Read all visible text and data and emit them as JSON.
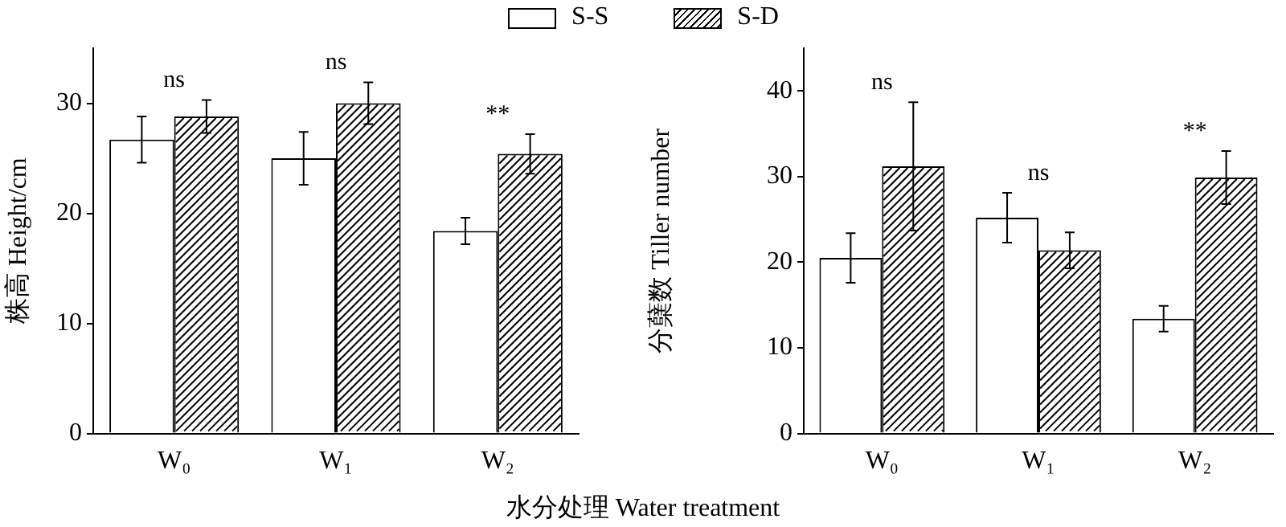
{
  "chart_data": [
    {
      "type": "bar",
      "ylabel": "株高 Height/cm",
      "xlabel": "水分处理 Water treatment",
      "legend": "top",
      "grid": false,
      "categories": [
        "W₀",
        "W₁",
        "W₂"
      ],
      "ylim": [
        0,
        35
      ],
      "yticks": [
        0,
        10,
        20,
        30
      ],
      "series": [
        {
          "name": "S-S",
          "color": "#000000",
          "values": [
            26.7,
            25.0,
            18.4
          ],
          "errors": [
            2.1,
            2.4,
            1.2
          ]
        },
        {
          "name": "S-D",
          "color": "#000000",
          "values": [
            28.8,
            30.0,
            25.4
          ],
          "errors": [
            1.5,
            1.9,
            1.8
          ]
        }
      ],
      "annotations": [
        "ns",
        "ns",
        "**"
      ]
    },
    {
      "type": "bar",
      "ylabel": "分蘖数 Tiller number",
      "grid": false,
      "categories": [
        "W₀",
        "W₁",
        "W₂"
      ],
      "ylim": [
        0,
        45
      ],
      "yticks": [
        0,
        10,
        20,
        30,
        40
      ],
      "series": [
        {
          "color": "#000000",
          "values": [
            20.5,
            25.2,
            13.4
          ],
          "errors": [
            2.9,
            2.9,
            1.5
          ]
        },
        {
          "color": "#000000",
          "values": [
            31.2,
            21.4,
            29.9
          ],
          "errors": [
            7.5,
            2.1,
            3.1
          ]
        }
      ],
      "annotations": [
        "ns",
        "ns",
        "**"
      ]
    }
  ]
}
